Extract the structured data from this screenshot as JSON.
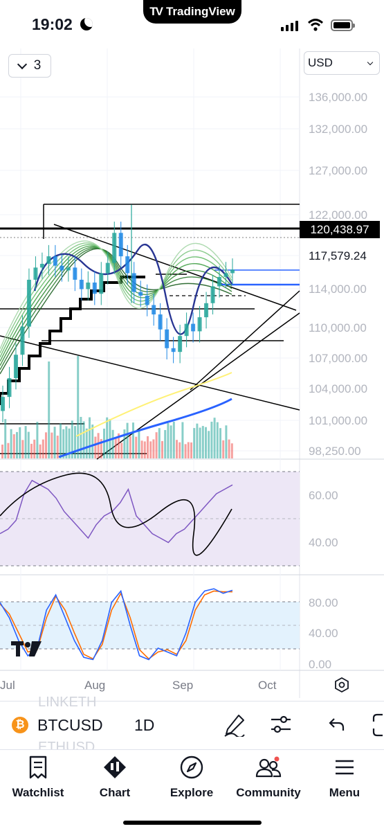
{
  "status_bar": {
    "time": "19:02",
    "app_indicator": "TradingView"
  },
  "chart_toolbar": {
    "layout_count": "3",
    "currency": "USD"
  },
  "price_scale": [
    "136,000.00",
    "132,000.00",
    "127,000.00",
    "122,000.00",
    "117,579.24",
    "114,000.00",
    "110,000.00",
    "107,000.00",
    "104,000.00",
    "101,000.00",
    "98,250.00"
  ],
  "last_price": "120,438.97",
  "rsi_scale": [
    "60.00",
    "40.00"
  ],
  "stoch_scale": [
    "80.00",
    "40.00",
    "0.00"
  ],
  "time_axis": [
    "Jul",
    "Aug",
    "Sep",
    "Oct"
  ],
  "symbol_bar": {
    "ghost_above": "LINKETH",
    "ghost_below": "ETHUSD",
    "symbol": "BTCUSD",
    "interval": "1D",
    "icons": [
      "pen-icon",
      "sliders-icon",
      "undo-icon",
      "fullscreen-icon"
    ]
  },
  "bottom_nav": {
    "items": [
      {
        "label": "Watchlist",
        "icon": "watchlist-icon"
      },
      {
        "label": "Chart",
        "icon": "chart-icon"
      },
      {
        "label": "Explore",
        "icon": "compass-icon"
      },
      {
        "label": "Community",
        "icon": "community-icon"
      },
      {
        "label": "Menu",
        "icon": "menu-icon"
      }
    ]
  },
  "colors": {
    "up": "#26a69a",
    "down": "#ef5350",
    "rsi_line": "#7e57c2",
    "rsi_band": "#ede7f6",
    "stoch_band": "#e3f2fd",
    "stoch_k": "#2962ff",
    "stoch_d": "#ff6d00",
    "ma_yellow": "#fff176",
    "ma_blue": "#2962ff"
  },
  "chart_data": {
    "type": "line",
    "series": [
      {
        "values": [
          104000,
          106000,
          108500,
          111500,
          116500,
          117800,
          118200,
          119000,
          118000,
          117500,
          117800,
          116500,
          115500,
          116200,
          115000,
          117200,
          118300,
          121500,
          119000,
          117200,
          115200,
          114800,
          113800,
          112800,
          111200,
          109200,
          108800,
          110500,
          111800,
          111000,
          112500,
          114000,
          115800,
          116800,
          117200,
          117579
        ]
      }
    ],
    "ylim": [
      98250,
      136000
    ],
    "rsi_values": [
      42,
      44,
      48,
      60,
      66,
      64,
      62,
      58,
      52,
      48,
      44,
      40,
      46,
      50,
      52,
      56,
      62,
      50,
      46,
      42,
      40,
      38,
      42,
      44,
      48,
      52,
      56,
      60,
      62,
      64
    ],
    "rsi_ylim": [
      25,
      75
    ],
    "stoch_k": [
      80,
      60,
      30,
      10,
      20,
      70,
      90,
      60,
      30,
      8,
      5,
      30,
      80,
      95,
      50,
      10,
      5,
      20,
      15,
      10,
      40,
      80,
      95,
      98,
      92,
      96
    ],
    "stoch_d": [
      78,
      65,
      40,
      15,
      18,
      60,
      88,
      70,
      40,
      12,
      6,
      25,
      70,
      92,
      60,
      18,
      6,
      15,
      18,
      12,
      30,
      70,
      90,
      95,
      94,
      94
    ],
    "stoch_ylim": [
      0,
      100
    ]
  }
}
